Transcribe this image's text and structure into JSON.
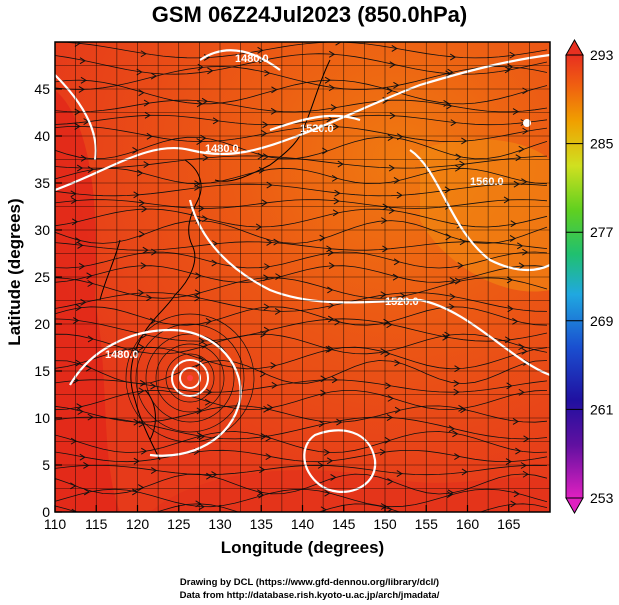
{
  "title": "GSM 06Z24Jul2023 (850.0hPa)",
  "x_axis": {
    "label": "Longitude (degrees)",
    "ticks": [
      "110",
      "115",
      "120",
      "125",
      "130",
      "135",
      "140",
      "145",
      "150",
      "155",
      "160",
      "165"
    ],
    "range": [
      110,
      170
    ]
  },
  "y_axis": {
    "label": "Latitude  (degrees)",
    "ticks": [
      "0",
      "5",
      "10",
      "15",
      "20",
      "25",
      "30",
      "35",
      "40",
      "45"
    ],
    "range": [
      0,
      50
    ]
  },
  "colorbar": {
    "ticks": [
      "293",
      "285",
      "277",
      "269",
      "261",
      "253"
    ],
    "range": [
      253,
      293
    ],
    "colors": [
      "#e020c0",
      "#2010a0",
      "#1a4fd0",
      "#20a8e0",
      "#20c070",
      "#60d020",
      "#d0e020",
      "#f0a000",
      "#f06010",
      "#e83020"
    ]
  },
  "contour_labels": [
    "1480.0",
    "1520.0",
    "1560.0",
    "1520.0",
    "1480.0"
  ],
  "field_colors": {
    "warm": "#e8401a",
    "hot": "#e0251a",
    "mild": "#f07a10",
    "contour": "#ffffff",
    "streamline": "#000000"
  },
  "credits": {
    "line1": "Drawing by DCL (https://www.gfd-dennou.org/library/dcl/)",
    "line2": "Data from http://database.rish.kyoto-u.ac.jp/arch/jmadata/"
  }
}
